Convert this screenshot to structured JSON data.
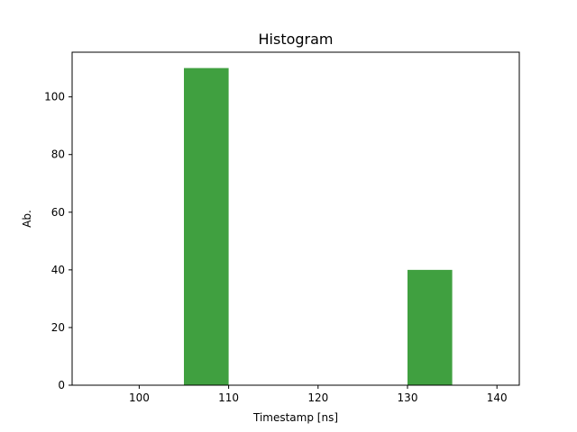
{
  "chart_data": {
    "type": "bar",
    "title": "Histogram",
    "xlabel": "Timestamp [ns]",
    "ylabel": "Ab.",
    "xlim": [
      92.5,
      142.5
    ],
    "ylim": [
      0,
      115.5
    ],
    "xticks": [
      100,
      110,
      120,
      130,
      140
    ],
    "yticks": [
      0,
      20,
      40,
      60,
      80,
      100
    ],
    "bins": [
      {
        "start": 105,
        "end": 110,
        "value": 110
      },
      {
        "start": 130,
        "end": 135,
        "value": 40
      }
    ],
    "bar_color": "#40a040",
    "grid": false,
    "legend": "none"
  }
}
